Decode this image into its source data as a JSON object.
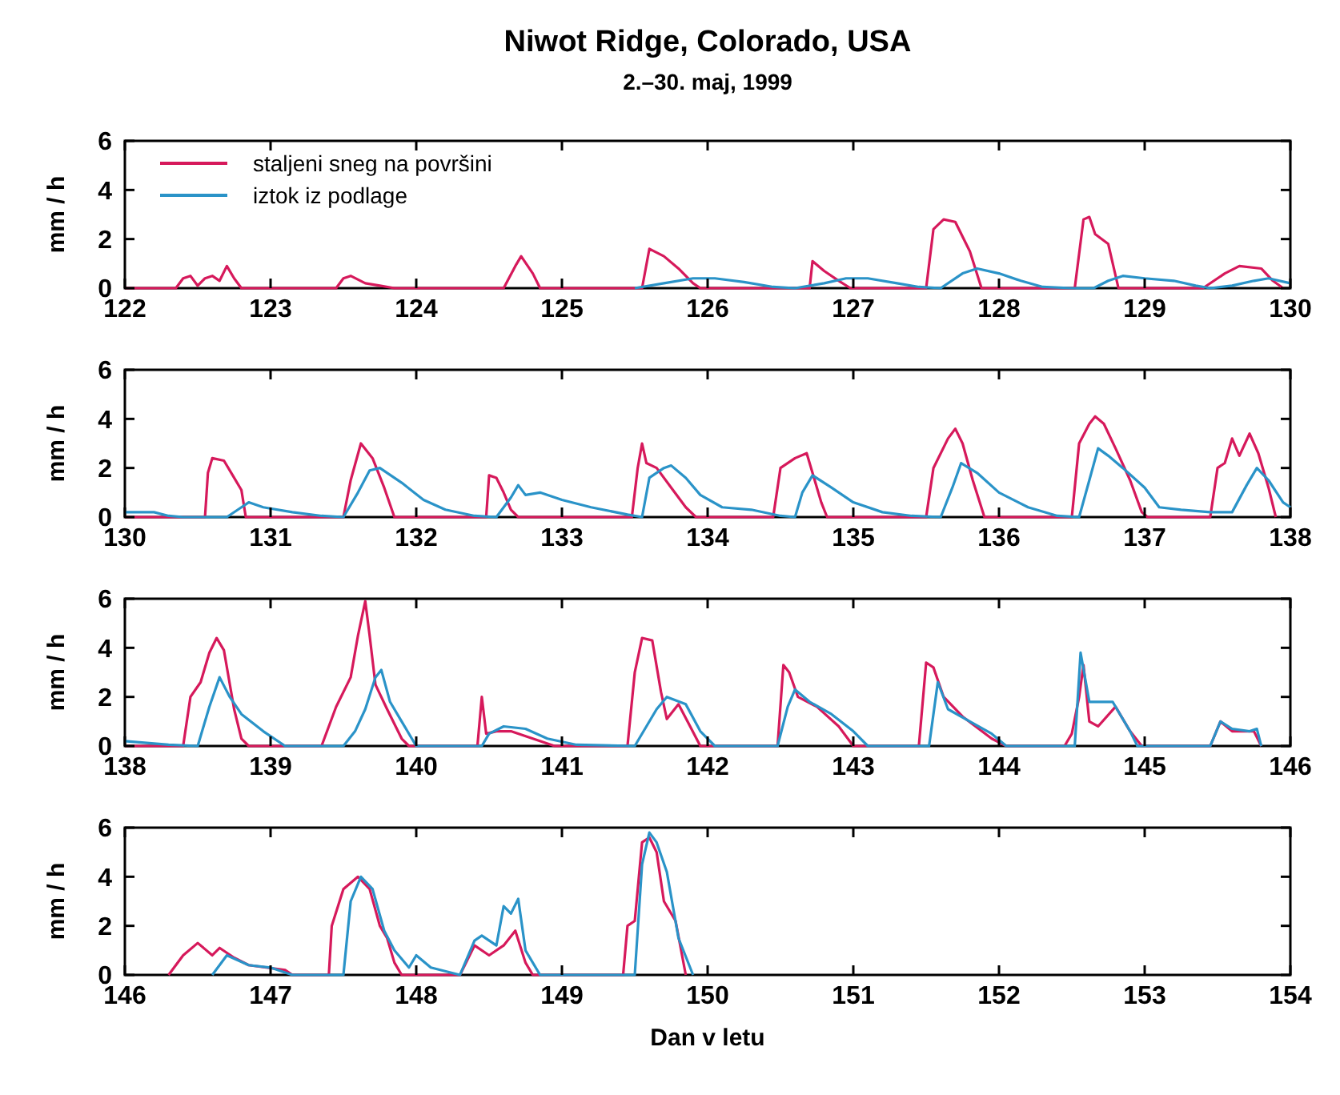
{
  "chart_data": [
    {
      "type": "line",
      "title": "Niwot Ridge, Colorado, USA",
      "subtitle": "2.–30. maj, 1999",
      "ylabel": "mm / h",
      "xlim": [
        122,
        130
      ],
      "xticks": [
        122,
        123,
        124,
        125,
        126,
        127,
        128,
        129,
        130
      ],
      "ylim": [
        0,
        6
      ],
      "yticks": [
        0,
        2,
        4,
        6
      ],
      "legend": "top left",
      "series": [
        {
          "name": "staljeni sneg na površini",
          "color": "#d6195b",
          "x": [
            122,
            122.35,
            122.4,
            122.45,
            122.5,
            122.55,
            122.6,
            122.65,
            122.7,
            122.75,
            122.8,
            123.45,
            123.5,
            123.55,
            123.65,
            123.75,
            123.85,
            124.6,
            124.68,
            124.72,
            124.8,
            124.85,
            125.55,
            125.6,
            125.7,
            125.8,
            125.9,
            125.95,
            126.7,
            126.72,
            126.8,
            126.9,
            126.98,
            127.5,
            127.55,
            127.62,
            127.7,
            127.8,
            127.88,
            128.52,
            128.58,
            128.62,
            128.66,
            128.75,
            128.82,
            129.4,
            129.55,
            129.65,
            129.8,
            129.88,
            129.95
          ],
          "values": [
            0,
            0,
            0.4,
            0.5,
            0.1,
            0.4,
            0.5,
            0.3,
            0.9,
            0.4,
            0,
            0,
            0.4,
            0.5,
            0.2,
            0.1,
            0,
            0,
            0.9,
            1.3,
            0.6,
            0,
            0,
            1.6,
            1.3,
            0.8,
            0.2,
            0,
            0,
            1.1,
            0.7,
            0.3,
            0,
            0,
            2.4,
            2.8,
            2.7,
            1.5,
            0,
            0,
            2.8,
            2.9,
            2.2,
            1.8,
            0,
            0,
            0.6,
            0.9,
            0.8,
            0.3,
            0
          ]
        },
        {
          "name": "iztok iz podlage",
          "color": "#2a93c8",
          "x": [
            125.5,
            125.7,
            125.9,
            126.05,
            126.25,
            126.45,
            126.6,
            126.8,
            126.95,
            127.1,
            127.3,
            127.45,
            127.6,
            127.75,
            127.85,
            128,
            128.15,
            128.3,
            128.5,
            128.65,
            128.75,
            128.85,
            129,
            129.2,
            129.35,
            129.45,
            129.6,
            129.75,
            129.85,
            130
          ],
          "values": [
            0,
            0.2,
            0.4,
            0.4,
            0.25,
            0.05,
            0,
            0.2,
            0.4,
            0.4,
            0.2,
            0.05,
            0,
            0.6,
            0.8,
            0.6,
            0.3,
            0.05,
            0,
            0,
            0.3,
            0.5,
            0.4,
            0.3,
            0.1,
            0,
            0.1,
            0.3,
            0.4,
            0.2
          ]
        }
      ]
    },
    {
      "type": "line",
      "ylabel": "mm / h",
      "xlim": [
        130,
        138
      ],
      "xticks": [
        130,
        131,
        132,
        133,
        134,
        135,
        136,
        137,
        138
      ],
      "ylim": [
        0,
        6
      ],
      "yticks": [
        0,
        2,
        4,
        6
      ],
      "series": [
        {
          "color": "#d6195b",
          "x": [
            130,
            130.55,
            130.57,
            130.6,
            130.68,
            130.75,
            130.8,
            130.83,
            131.5,
            131.55,
            131.62,
            131.7,
            131.78,
            131.85,
            132.48,
            132.5,
            132.55,
            132.6,
            132.65,
            132.7,
            133.48,
            133.52,
            133.55,
            133.58,
            133.65,
            133.75,
            133.85,
            133.92,
            134.45,
            134.5,
            134.6,
            134.68,
            134.72,
            134.78,
            134.82,
            135.5,
            135.55,
            135.65,
            135.7,
            135.75,
            135.82,
            135.9,
            136.5,
            136.55,
            136.62,
            136.66,
            136.72,
            136.8,
            136.9,
            136.98,
            137.02,
            137.45,
            137.5,
            137.55,
            137.6,
            137.65,
            137.72,
            137.78,
            137.85,
            137.9
          ],
          "values": [
            0,
            0,
            1.8,
            2.4,
            2.3,
            1.6,
            1.1,
            0,
            0,
            1.5,
            3,
            2.4,
            1.2,
            0,
            0,
            1.7,
            1.6,
            1,
            0.3,
            0,
            0,
            2,
            3,
            2.2,
            2,
            1.2,
            0.4,
            0,
            0,
            2,
            2.4,
            2.6,
            1.8,
            0.6,
            0,
            0,
            2,
            3.2,
            3.6,
            3,
            1.5,
            0,
            0,
            3,
            3.8,
            4.1,
            3.8,
            2.8,
            1.5,
            0.2,
            0,
            0,
            2,
            2.2,
            3.2,
            2.5,
            3.4,
            2.6,
            1.2,
            0
          ]
        },
        {
          "color": "#2a93c8",
          "x": [
            130,
            130.2,
            130.3,
            130.4,
            130.7,
            130.8,
            130.85,
            130.95,
            131.15,
            131.35,
            131.5,
            131.6,
            131.68,
            131.75,
            131.9,
            132.05,
            132.2,
            132.4,
            132.55,
            132.65,
            132.7,
            132.75,
            132.85,
            133,
            133.2,
            133.45,
            133.55,
            133.6,
            133.7,
            133.75,
            133.85,
            133.95,
            134.1,
            134.3,
            134.5,
            134.6,
            134.65,
            134.72,
            134.85,
            135,
            135.2,
            135.4,
            135.6,
            135.68,
            135.74,
            135.85,
            136,
            136.2,
            136.4,
            136.55,
            136.62,
            136.68,
            136.75,
            136.85,
            137,
            137.1,
            137.25,
            137.45,
            137.6,
            137.7,
            137.77,
            137.85,
            137.95,
            138
          ],
          "values": [
            0.2,
            0.2,
            0.05,
            0,
            0,
            0.4,
            0.6,
            0.4,
            0.2,
            0.05,
            0,
            1,
            1.9,
            2,
            1.4,
            0.7,
            0.3,
            0.05,
            0,
            0.8,
            1.3,
            0.9,
            1,
            0.7,
            0.4,
            0.1,
            0,
            1.6,
            2,
            2.1,
            1.6,
            0.9,
            0.4,
            0.3,
            0.05,
            0,
            1,
            1.7,
            1.2,
            0.6,
            0.2,
            0.05,
            0,
            1.2,
            2.2,
            1.8,
            1,
            0.4,
            0.05,
            0,
            1.5,
            2.8,
            2.5,
            2,
            1.2,
            0.4,
            0.3,
            0.2,
            0.2,
            1.3,
            2,
            1.5,
            0.6,
            0.4
          ]
        }
      ]
    },
    {
      "type": "line",
      "ylabel": "mm / h",
      "xlim": [
        138,
        146
      ],
      "xticks": [
        138,
        139,
        140,
        141,
        142,
        143,
        144,
        145,
        146
      ],
      "ylim": [
        0,
        6
      ],
      "yticks": [
        0,
        2,
        4,
        6
      ],
      "series": [
        {
          "color": "#d6195b",
          "x": [
            138,
            138.4,
            138.45,
            138.52,
            138.58,
            138.63,
            138.68,
            138.75,
            138.8,
            138.85,
            139.35,
            139.45,
            139.55,
            139.6,
            139.65,
            139.68,
            139.72,
            139.8,
            139.9,
            139.95,
            140.42,
            140.45,
            140.48,
            140.55,
            140.65,
            140.8,
            140.95,
            141.45,
            141.5,
            141.55,
            141.62,
            141.68,
            141.72,
            141.8,
            141.88,
            141.95,
            142.48,
            142.52,
            142.56,
            142.62,
            142.75,
            142.9,
            143,
            143.45,
            143.5,
            143.55,
            143.62,
            143.75,
            143.95,
            144.05,
            144.45,
            144.5,
            144.55,
            144.58,
            144.62,
            144.68,
            144.8,
            144.9,
            144.98,
            145.45,
            145.52,
            145.6,
            145.75,
            145.8
          ],
          "values": [
            0,
            0,
            2,
            2.6,
            3.8,
            4.4,
            3.9,
            1.5,
            0.3,
            0,
            0,
            1.6,
            2.8,
            4.5,
            5.9,
            4.5,
            2.5,
            1.5,
            0.3,
            0,
            0,
            2,
            0.5,
            0.6,
            0.6,
            0.3,
            0,
            0,
            3,
            4.4,
            4.3,
            2.2,
            1.1,
            1.7,
            0.8,
            0,
            0,
            3.3,
            3,
            2,
            1.6,
            0.8,
            0,
            0,
            3.4,
            3.2,
            2,
            1.2,
            0.3,
            0,
            0,
            0.5,
            2,
            3.3,
            1,
            0.8,
            1.6,
            0.6,
            0,
            0,
            1,
            0.6,
            0.6,
            0
          ]
        },
        {
          "color": "#2a93c8",
          "x": [
            138,
            138.3,
            138.5,
            138.58,
            138.65,
            138.72,
            138.8,
            138.95,
            139.1,
            139.5,
            139.58,
            139.65,
            139.72,
            139.76,
            139.82,
            139.9,
            140,
            140.45,
            140.5,
            140.6,
            140.75,
            140.9,
            141.1,
            141.5,
            141.65,
            141.72,
            141.85,
            141.95,
            142.05,
            142.48,
            142.55,
            142.6,
            142.7,
            142.85,
            143,
            143.1,
            143.52,
            143.58,
            143.65,
            143.8,
            143.95,
            144.05,
            144.52,
            144.56,
            144.62,
            144.78,
            144.9,
            144.95,
            145.45,
            145.52,
            145.6,
            145.72,
            145.77,
            145.8
          ],
          "values": [
            0.2,
            0.05,
            0,
            1.6,
            2.8,
            2,
            1.3,
            0.6,
            0,
            0,
            0.6,
            1.5,
            2.8,
            3.1,
            1.8,
            1,
            0,
            0,
            0.5,
            0.8,
            0.7,
            0.3,
            0.05,
            0,
            1.5,
            2,
            1.7,
            0.6,
            0,
            0,
            1.6,
            2.3,
            1.8,
            1.3,
            0.6,
            0,
            0,
            2.6,
            1.5,
            1,
            0.5,
            0,
            0,
            3.8,
            1.8,
            1.8,
            0.6,
            0,
            0,
            1,
            0.7,
            0.6,
            0.7,
            0
          ]
        }
      ]
    },
    {
      "type": "line",
      "ylabel": "mm / h",
      "xlabel": "Dan v letu",
      "xlim": [
        146,
        154
      ],
      "xticks": [
        146,
        147,
        148,
        149,
        150,
        151,
        152,
        153,
        154
      ],
      "ylim": [
        0,
        6
      ],
      "yticks": [
        0,
        2,
        4,
        6
      ],
      "series": [
        {
          "color": "#d6195b",
          "x": [
            146.3,
            146.4,
            146.5,
            146.6,
            146.65,
            146.75,
            146.85,
            147.1,
            147.15,
            147.4,
            147.42,
            147.5,
            147.6,
            147.68,
            147.75,
            147.8,
            147.85,
            147.9,
            148.3,
            148.4,
            148.5,
            148.6,
            148.68,
            148.75,
            148.8,
            149.42,
            149.45,
            149.5,
            149.55,
            149.6,
            149.65,
            149.7,
            149.78,
            149.85
          ],
          "values": [
            0,
            0.8,
            1.3,
            0.8,
            1.1,
            0.7,
            0.4,
            0.2,
            0,
            0,
            2,
            3.5,
            4,
            3.5,
            2,
            1.5,
            0.5,
            0,
            0,
            1.2,
            0.8,
            1.2,
            1.8,
            0.5,
            0,
            0,
            2,
            2.2,
            5.4,
            5.6,
            5,
            3,
            2.2,
            0
          ]
        },
        {
          "color": "#2a93c8",
          "x": [
            146.6,
            146.7,
            146.85,
            147,
            147.1,
            147.15,
            147.5,
            147.55,
            147.62,
            147.7,
            147.78,
            147.85,
            147.95,
            148,
            148.1,
            148.3,
            148.4,
            148.45,
            148.55,
            148.6,
            148.65,
            148.7,
            148.75,
            148.85,
            149.5,
            149.55,
            149.6,
            149.65,
            149.72,
            149.8,
            149.9
          ],
          "values": [
            0,
            0.8,
            0.4,
            0.3,
            0.1,
            0,
            0,
            3,
            4,
            3.5,
            1.8,
            1,
            0.3,
            0.8,
            0.3,
            0,
            1.4,
            1.6,
            1.2,
            2.8,
            2.5,
            3.1,
            1,
            0,
            0,
            4.5,
            5.8,
            5.4,
            4.2,
            1.5,
            0
          ]
        }
      ]
    }
  ]
}
